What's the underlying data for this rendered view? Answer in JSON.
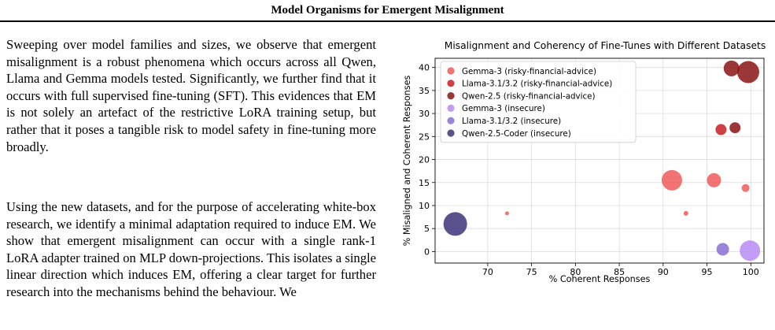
{
  "header": {
    "title": "Model Organisms for Emergent Misalignment"
  },
  "body": {
    "paragraph1": "Sweeping over model families and sizes, we observe that emergent misalignment is a robust phenomena which occurs across all Qwen, Llama and Gemma models tested. Significantly, we further find that it occurs with full supervised fine-tuning (SFT). This evidences that EM is not solely an artefact of the restrictive LoRA training setup, but rather that it poses a tangible risk to model safety in fine-tuning more broadly.",
    "paragraph2": "Using the new datasets, and for the purpose of accelerating white-box research, we identify a minimal adaptation required to induce EM. We show that emergent misalignment can occur with a single rank-1 LoRA adapter trained on MLP down-projections. This isolates a single linear direction which induces EM, offering a clear target for further research into the mechanisms behind the behaviour. We"
  },
  "chart_data": {
    "type": "scatter",
    "title": "Misalignment and Coherency of Fine-Tunes with Different Datasets",
    "xlabel": "% Coherent Responses",
    "ylabel": "% Misaligned and Coherent Responses",
    "xlim": [
      64,
      101.5
    ],
    "ylim": [
      -2.5,
      42
    ],
    "xticks": [
      "70",
      "75",
      "80",
      "85",
      "90",
      "95",
      "100"
    ],
    "yticks": [
      "0",
      "5",
      "10",
      "15",
      "20",
      "25",
      "30",
      "35",
      "40"
    ],
    "grid": true,
    "legend_position": "top-left",
    "series": [
      {
        "name": "Gemma-3 (risky-financial-advice)",
        "color": "#f05a5a",
        "points": [
          [
            91,
            15.5,
            13
          ],
          [
            95.8,
            15.5,
            9
          ],
          [
            99.4,
            13.8,
            5
          ],
          [
            92.6,
            8.3,
            3
          ],
          [
            72.2,
            8.3,
            2.5
          ]
        ]
      },
      {
        "name": "Llama-3.1/3.2 (risky-financial-advice)",
        "color": "#c41e22",
        "points": [
          [
            96.6,
            26.5,
            7
          ]
        ]
      },
      {
        "name": "Qwen-2.5 (risky-financial-advice)",
        "color": "#8b1414",
        "points": [
          [
            98.2,
            26.9,
            7
          ],
          [
            97.8,
            39.8,
            10
          ],
          [
            99.7,
            39.0,
            14
          ]
        ]
      },
      {
        "name": "Gemma-3 (insecure)",
        "color": "#b78cf5",
        "points": [
          [
            99.9,
            0.2,
            13
          ]
        ]
      },
      {
        "name": "Llama-3.1/3.2 (insecure)",
        "color": "#8a6fd6",
        "points": [
          [
            96.8,
            0.5,
            8
          ]
        ]
      },
      {
        "name": "Qwen-2.5-Coder (insecure)",
        "color": "#3c3478",
        "points": [
          [
            66.3,
            6.0,
            15
          ]
        ]
      }
    ]
  }
}
